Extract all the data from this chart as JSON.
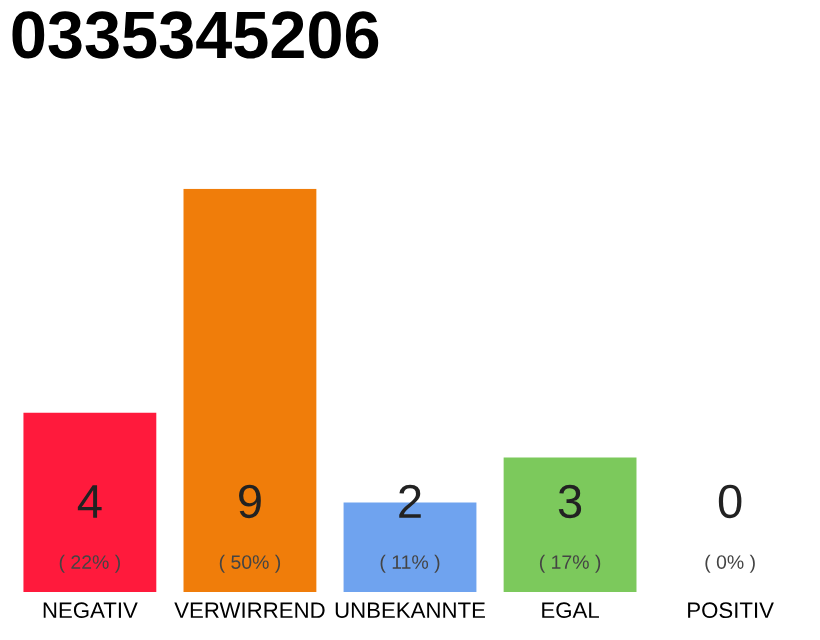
{
  "chart_data": {
    "type": "bar",
    "title": "0335345206",
    "categories": [
      "NEGATIV",
      "VERWIRREND",
      "UNBEKANNTE",
      "EGAL",
      "POSITIV"
    ],
    "values": [
      4,
      9,
      2,
      3,
      0
    ],
    "colors": [
      "#ff1a3c",
      "#f07d0a",
      "#6fa3ef",
      "#7cc95c",
      "#cccccc"
    ],
    "ylim": [
      0,
      9
    ],
    "tick_labels": "x",
    "data_labels": true,
    "annotations": [
      "( 22% )",
      "( 50% )",
      "( 11% )",
      "( 17% )",
      "( 0% )"
    ]
  }
}
